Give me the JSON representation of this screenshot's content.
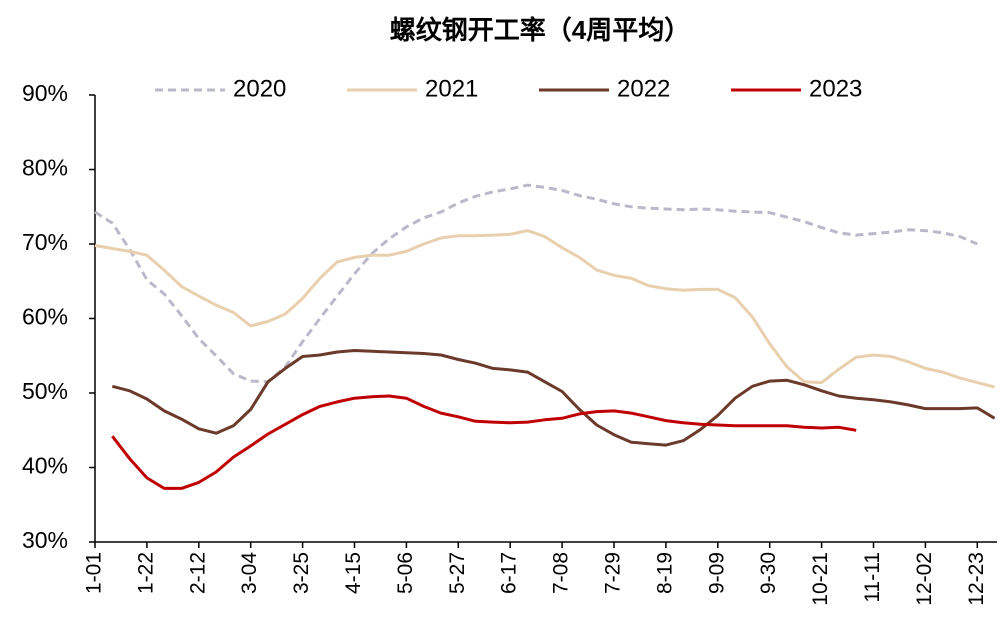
{
  "chart_data": {
    "type": "line",
    "title": "螺纹钢开工率（4周平均）",
    "categories": [
      "1-01",
      null,
      null,
      "1-22",
      null,
      null,
      "2-12",
      null,
      null,
      "3-04",
      null,
      null,
      "3-25",
      null,
      null,
      "4-15",
      null,
      null,
      "5-06",
      null,
      null,
      "5-27",
      null,
      null,
      "6-17",
      null,
      null,
      "7-08",
      null,
      null,
      "7-29",
      null,
      null,
      "8-19",
      null,
      null,
      "9-09",
      null,
      null,
      "9-30",
      null,
      null,
      "10-21",
      null,
      null,
      "11-11",
      null,
      null,
      "12-02",
      null,
      null,
      "12-23",
      null
    ],
    "series": [
      {
        "name": "2020",
        "color": "#b9b9c9",
        "dashed": true,
        "values": [
          74.3,
          72.8,
          69.3,
          65.2,
          63.3,
          60.4,
          57.3,
          55,
          52.6,
          51.6,
          51.5,
          53.5,
          56.9,
          60,
          63,
          66,
          68.7,
          70.7,
          72.3,
          73.5,
          74.3,
          75.5,
          76.4,
          77,
          77.4,
          77.9,
          77.6,
          77.2,
          76.5,
          76,
          75.4,
          75,
          74.8,
          74.7,
          74.6,
          74.7,
          74.6,
          74.4,
          74.3,
          74.2,
          73.6,
          73,
          72.2,
          71.5,
          71.2,
          71.4,
          71.6,
          71.9,
          71.8,
          71.5,
          71,
          70,
          null
        ]
      },
      {
        "name": "2021",
        "color": "#e8cfae",
        "values": [
          69.8,
          69.4,
          69,
          68.5,
          66.5,
          64.3,
          63,
          61.8,
          60.8,
          59,
          59.6,
          60.6,
          62.7,
          65.4,
          67.6,
          68.2,
          68.5,
          68.5,
          69,
          70,
          70.8,
          71.1,
          71.1,
          71.2,
          71.3,
          71.8,
          71,
          69.5,
          68.2,
          66.5,
          65.8,
          65.4,
          64.4,
          64,
          63.8,
          63.9,
          63.9,
          62.8,
          60.2,
          56.6,
          53.5,
          51.5,
          51.4,
          53.2,
          54.8,
          55.1,
          54.9,
          54.2,
          53.3,
          52.8,
          52,
          51.4,
          50.8
        ]
      },
      {
        "name": "2022",
        "color": "#6b3a2a",
        "values": [
          null,
          50.9,
          50.3,
          49.2,
          47.6,
          46.5,
          45.2,
          44.6,
          45.6,
          47.8,
          51.5,
          53.3,
          54.9,
          55.1,
          55.5,
          55.7,
          55.6,
          55.5,
          55.4,
          55.3,
          55.1,
          54.5,
          54,
          53.3,
          53.1,
          52.8,
          51.5,
          50.2,
          47.8,
          45.7,
          44.4,
          43.4,
          43.2,
          43,
          43.6,
          45.1,
          47,
          49.3,
          50.9,
          51.6,
          51.7,
          51.1,
          50.3,
          49.6,
          49.3,
          49.1,
          48.8,
          48.4,
          47.9,
          47.9,
          47.9,
          48,
          46.6
        ]
      },
      {
        "name": "2023",
        "color": "#c00000",
        "values": [
          null,
          44.2,
          41.2,
          38.6,
          37.2,
          37.2,
          38,
          39.4,
          41.4,
          42.9,
          44.5,
          45.8,
          47.1,
          48.2,
          48.8,
          49.3,
          49.5,
          49.6,
          49.3,
          48.2,
          47.3,
          46.8,
          46.2,
          46.1,
          46,
          46.1,
          46.4,
          46.6,
          47.2,
          47.5,
          47.6,
          47.3,
          46.8,
          46.3,
          46,
          45.8,
          45.7,
          45.6,
          45.6,
          45.6,
          45.6,
          45.4,
          45.3,
          45.4,
          45,
          null,
          null,
          null,
          null,
          null,
          null,
          null,
          null
        ]
      }
    ],
    "ylim": [
      30,
      90
    ],
    "yticks": [
      {
        "value": 30,
        "label": "30%"
      },
      {
        "value": 40,
        "label": "40%"
      },
      {
        "value": 50,
        "label": "50%"
      },
      {
        "value": 60,
        "label": "60%"
      },
      {
        "value": 70,
        "label": "70%"
      },
      {
        "value": 80,
        "label": "80%"
      },
      {
        "value": 90,
        "label": "90%"
      }
    ],
    "legend": "top"
  }
}
